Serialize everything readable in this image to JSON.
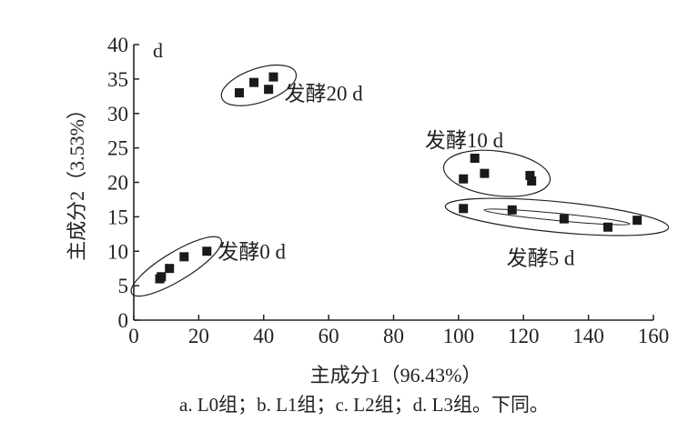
{
  "chart_data": {
    "type": "scatter",
    "panel_letter": "d",
    "xlabel": "主成分1（96.43%）",
    "ylabel": "主成分2（3.53%）",
    "xlim": [
      0,
      160
    ],
    "ylim": [
      0,
      40
    ],
    "x_ticks": [
      "0",
      "20",
      "40",
      "60",
      "80",
      "100",
      "120",
      "140",
      "160"
    ],
    "y_ticks": [
      "0",
      "5",
      "10",
      "15",
      "20",
      "25",
      "30",
      "35",
      "40"
    ],
    "grid": false,
    "marker": "square",
    "marker_color": "#1a1a1a",
    "groups": [
      {
        "label": "发酵0 d",
        "points": [
          [
            8,
            6
          ],
          [
            8.5,
            6.3
          ],
          [
            11,
            7.5
          ],
          [
            15.5,
            9.2
          ],
          [
            22.5,
            10
          ]
        ]
      },
      {
        "label": "发酵20 d",
        "points": [
          [
            32.5,
            33
          ],
          [
            37,
            34.5
          ],
          [
            41.5,
            33.5
          ],
          [
            43,
            35.3
          ]
        ]
      },
      {
        "label": "发酵10 d",
        "points": [
          [
            101.5,
            20.5
          ],
          [
            105,
            23.5
          ],
          [
            108,
            21.3
          ],
          [
            122,
            21
          ],
          [
            122.5,
            20.2
          ]
        ]
      },
      {
        "label": "发酵5 d",
        "points": [
          [
            101.5,
            16.2
          ],
          [
            116.5,
            16
          ],
          [
            132.5,
            14.7
          ],
          [
            146,
            13.5
          ],
          [
            155,
            14.5
          ]
        ]
      }
    ]
  },
  "caption": "a. L0组；b. L1组；c. L2组；d. L3组。下同。"
}
